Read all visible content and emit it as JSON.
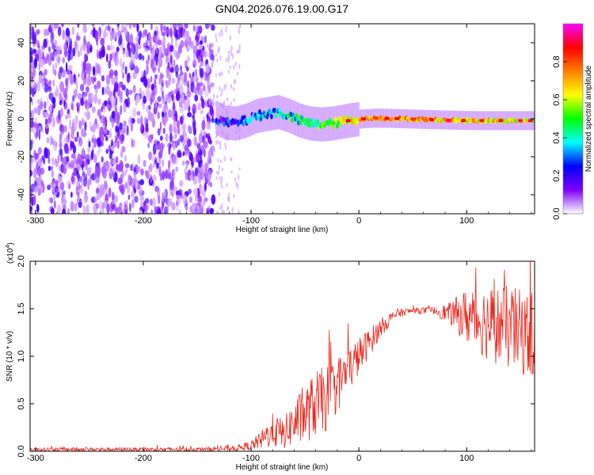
{
  "title": "GN04.2026.076.19.00.G17",
  "chart_data": [
    {
      "type": "heatmap",
      "xlabel": "Height of straight line (km)",
      "ylabel": "Frequency (Hz)",
      "xlim": [
        -305,
        163
      ],
      "ylim": [
        -50,
        50
      ],
      "xticks": [
        -300,
        -200,
        -100,
        0,
        100
      ],
      "xtick_labels": [
        "-300",
        "-200",
        "-100",
        "0",
        "100"
      ],
      "yticks": [
        -40,
        -20,
        0,
        20,
        40
      ],
      "ytick_labels": [
        "-40",
        "-20",
        "0",
        "20",
        "40"
      ],
      "noise_region_x": [
        -305,
        -135
      ],
      "ridge": [
        {
          "x": -133,
          "y": 0.5,
          "a": 0.22
        },
        {
          "x": -125,
          "y": -2.0,
          "a": 0.2
        },
        {
          "x": -115,
          "y": -2.5,
          "a": 0.25
        },
        {
          "x": -105,
          "y": -1.0,
          "a": 0.28
        },
        {
          "x": -95,
          "y": 1.5,
          "a": 0.3
        },
        {
          "x": -85,
          "y": 2.5,
          "a": 0.33
        },
        {
          "x": -75,
          "y": 3.5,
          "a": 0.36
        },
        {
          "x": -65,
          "y": 1.5,
          "a": 0.38
        },
        {
          "x": -55,
          "y": -1.0,
          "a": 0.42
        },
        {
          "x": -45,
          "y": -2.5,
          "a": 0.45
        },
        {
          "x": -35,
          "y": -3.0,
          "a": 0.5
        },
        {
          "x": -25,
          "y": -2.5,
          "a": 0.55
        },
        {
          "x": -15,
          "y": -1.5,
          "a": 0.6
        },
        {
          "x": -5,
          "y": -0.5,
          "a": 0.66
        },
        {
          "x": 5,
          "y": 0.0,
          "a": 0.7
        },
        {
          "x": 15,
          "y": 0.3,
          "a": 0.72
        },
        {
          "x": 30,
          "y": 0.2,
          "a": 0.72
        },
        {
          "x": 50,
          "y": -0.2,
          "a": 0.7
        },
        {
          "x": 70,
          "y": -0.5,
          "a": 0.7
        },
        {
          "x": 90,
          "y": -0.8,
          "a": 0.68
        },
        {
          "x": 110,
          "y": -1.0,
          "a": 0.66
        },
        {
          "x": 130,
          "y": -1.0,
          "a": 0.64
        },
        {
          "x": 150,
          "y": -1.0,
          "a": 0.62
        },
        {
          "x": 163,
          "y": -1.0,
          "a": 0.6
        }
      ],
      "colorbar": {
        "label": "Normalized spectral amplitude",
        "ticks": [
          0.0,
          0.2,
          0.4,
          0.6,
          0.8
        ],
        "tick_labels": [
          "0.0",
          "0.2",
          "0.4",
          "0.6",
          "0.8"
        ],
        "range": [
          0.0,
          1.0
        ],
        "colors": [
          "#ffffff",
          "#7f00ff",
          "#0000ff",
          "#00ffff",
          "#00ff00",
          "#ffff00",
          "#ff7f00",
          "#ff0000",
          "#ff00ff"
        ]
      }
    },
    {
      "type": "line",
      "xlabel": "Height of straight line (km)",
      "ylabel": "SNR (10 * v/v)",
      "multiplier": "(x10",
      "multiplier_exp": "4",
      "xlim": [
        -305,
        163
      ],
      "ylim": [
        0,
        2.0
      ],
      "xticks": [
        -300,
        -200,
        -100,
        0,
        100
      ],
      "xtick_labels": [
        "-300",
        "-200",
        "-100",
        "0",
        "100"
      ],
      "yticks": [
        0,
        0.5,
        1.0,
        1.5,
        2.0
      ],
      "ytick_labels": [
        "0.0",
        "0.5",
        "1.0",
        "1.5",
        "2.0"
      ],
      "color": "#e8281e",
      "envelope": [
        {
          "x": -305,
          "mean": 0.02,
          "spread": 0.02
        },
        {
          "x": -200,
          "mean": 0.02,
          "spread": 0.02
        },
        {
          "x": -150,
          "mean": 0.02,
          "spread": 0.02
        },
        {
          "x": -115,
          "mean": 0.03,
          "spread": 0.03
        },
        {
          "x": -100,
          "mean": 0.06,
          "spread": 0.05
        },
        {
          "x": -90,
          "mean": 0.12,
          "spread": 0.1
        },
        {
          "x": -80,
          "mean": 0.22,
          "spread": 0.18
        },
        {
          "x": -70,
          "mean": 0.18,
          "spread": 0.16
        },
        {
          "x": -60,
          "mean": 0.3,
          "spread": 0.25
        },
        {
          "x": -50,
          "mean": 0.38,
          "spread": 0.3
        },
        {
          "x": -40,
          "mean": 0.5,
          "spread": 0.35
        },
        {
          "x": -30,
          "mean": 0.55,
          "spread": 0.35
        },
        {
          "x": -20,
          "mean": 0.7,
          "spread": 0.3
        },
        {
          "x": -10,
          "mean": 0.85,
          "spread": 0.25
        },
        {
          "x": 0,
          "mean": 1.0,
          "spread": 0.2
        },
        {
          "x": 10,
          "mean": 1.15,
          "spread": 0.15
        },
        {
          "x": 20,
          "mean": 1.3,
          "spread": 0.1
        },
        {
          "x": 35,
          "mean": 1.45,
          "spread": 0.05
        },
        {
          "x": 50,
          "mean": 1.48,
          "spread": 0.03
        },
        {
          "x": 70,
          "mean": 1.48,
          "spread": 0.04
        },
        {
          "x": 85,
          "mean": 1.45,
          "spread": 0.12
        },
        {
          "x": 100,
          "mean": 1.42,
          "spread": 0.3
        },
        {
          "x": 120,
          "mean": 1.35,
          "spread": 0.4
        },
        {
          "x": 140,
          "mean": 1.3,
          "spread": 0.45
        },
        {
          "x": 163,
          "mean": 1.2,
          "spread": 0.45
        }
      ]
    }
  ]
}
